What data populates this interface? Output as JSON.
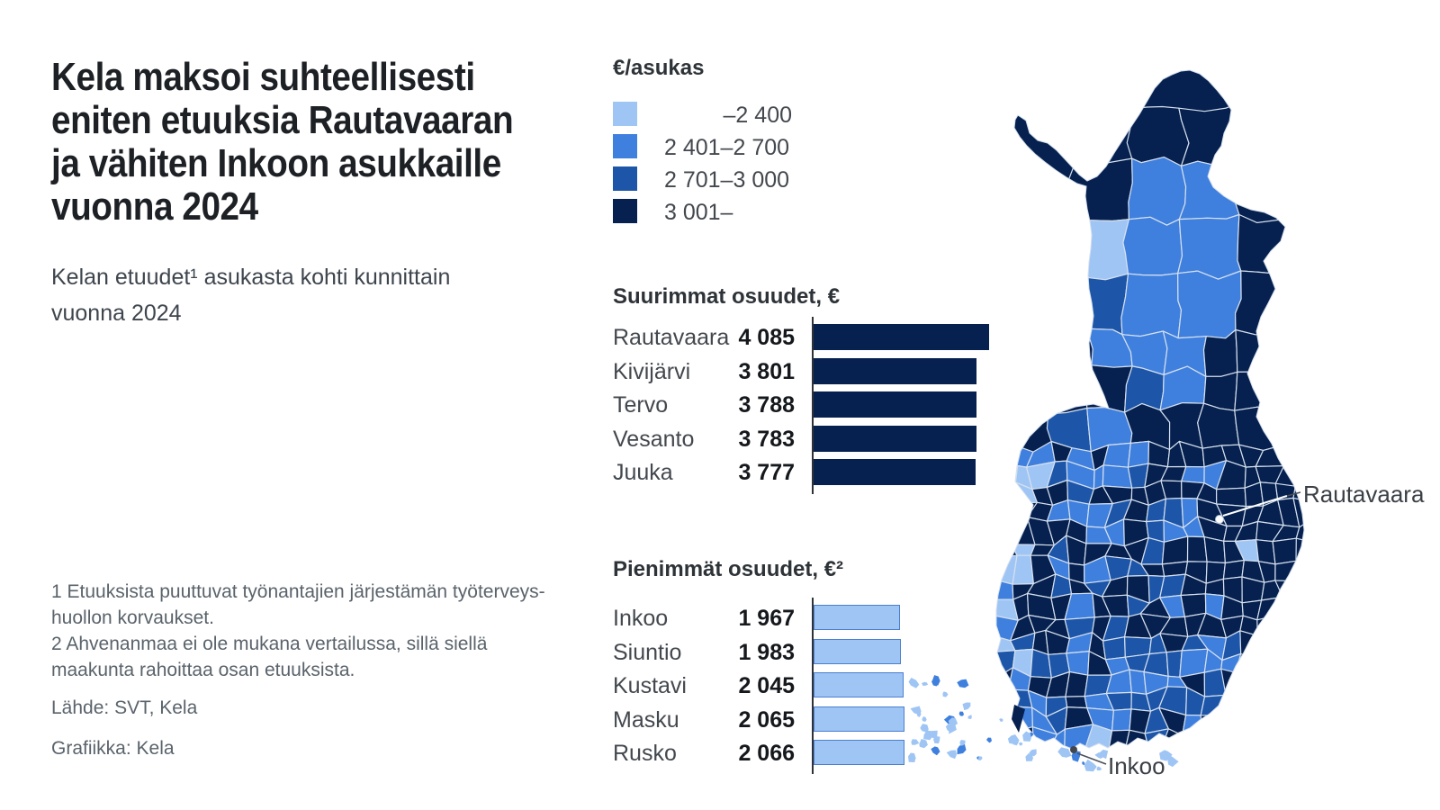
{
  "header": {
    "title_lines": [
      "Kela maksoi suhteellisesti",
      "eniten etuuksia Rautavaaran",
      "ja vähiten Inkoon asukkaille",
      "vuonna 2024"
    ],
    "subtitle_lines": [
      "Kelan etuudet¹ asukasta kohti kunnittain",
      "vuonna 2024"
    ]
  },
  "legend": {
    "title": "€/asukas",
    "items": [
      {
        "label": "–2 400",
        "color": "#9fc5f5"
      },
      {
        "label": "2 401–2 700",
        "color": "#3f80de"
      },
      {
        "label": "2 701–3 000",
        "color": "#1d56a9"
      },
      {
        "label": "3 001–",
        "color": "#06214f"
      }
    ]
  },
  "charts": [
    {
      "title": "Suurimmat osuudet, €",
      "rows": [
        {
          "label": "Rautavaara",
          "value": 4085,
          "value_label": "4 085"
        },
        {
          "label": "Kivijärvi",
          "value": 3801,
          "value_label": "3 801"
        },
        {
          "label": "Tervo",
          "value": 3788,
          "value_label": "3 788"
        },
        {
          "label": "Vesanto",
          "value": 3783,
          "value_label": "3 783"
        },
        {
          "label": "Juuka",
          "value": 3777,
          "value_label": "3 777"
        }
      ]
    },
    {
      "title": "Pienimmät osuudet, €²",
      "rows": [
        {
          "label": "Inkoo",
          "value": 1967,
          "value_label": "1 967"
        },
        {
          "label": "Siuntio",
          "value": 1983,
          "value_label": "1 983"
        },
        {
          "label": "Kustavi",
          "value": 2045,
          "value_label": "2 045"
        },
        {
          "label": "Masku",
          "value": 2065,
          "value_label": "2 065"
        },
        {
          "label": "Rusko",
          "value": 2066,
          "value_label": "2 066"
        }
      ]
    }
  ],
  "chart_data": [
    {
      "type": "bar",
      "orientation": "horizontal",
      "title": "Suurimmat osuudet, €",
      "categories": [
        "Rautavaara",
        "Kivijärvi",
        "Tervo",
        "Vesanto",
        "Juuka"
      ],
      "values": [
        4085,
        3801,
        3788,
        3783,
        3777
      ],
      "unit": "€/asukas",
      "xlim": [
        0,
        4085
      ],
      "bar_color": "#06214f",
      "grid": false
    },
    {
      "type": "bar",
      "orientation": "horizontal",
      "title": "Pienimmät osuudet, €²",
      "categories": [
        "Inkoo",
        "Siuntio",
        "Kustavi",
        "Masku",
        "Rusko"
      ],
      "values": [
        1967,
        1983,
        2045,
        2065,
        2066
      ],
      "unit": "€/asukas",
      "xlim": [
        0,
        4085
      ],
      "bar_color": "#9fc5f5",
      "grid": false
    },
    {
      "type": "heatmap",
      "subtype": "choropleth-map-finland",
      "title": "€/asukas",
      "classes": [
        "–2 400",
        "2 401–2 700",
        "2 701–3 000",
        "3 001–"
      ],
      "class_colors": [
        "#9fc5f5",
        "#3f80de",
        "#1d56a9",
        "#06214f"
      ],
      "annotations": [
        "Rautavaara",
        "Inkoo"
      ]
    }
  ],
  "map": {
    "annotations": [
      {
        "text": "Rautavaara"
      },
      {
        "text": "Inkoo"
      }
    ],
    "colors": {
      "light": "#9fc5f5",
      "medium": "#3f80de",
      "mid_dark": "#1d56a9",
      "navy": "#06214f",
      "border": "#d6e0ee",
      "bar_border": "#4a7fd0"
    }
  },
  "footnotes": {
    "lines": [
      "1 Etuuksista puuttuvat työnantajien järjestämän työterveys-",
      "huollon korvaukset.",
      "2 Ahvenanmaa ei ole mukana vertailussa, sillä siellä",
      "maakunta rahoittaa osan etuuksista."
    ],
    "source": "Lähde: SVT, Kela",
    "credit": "Grafiikka: Kela"
  }
}
